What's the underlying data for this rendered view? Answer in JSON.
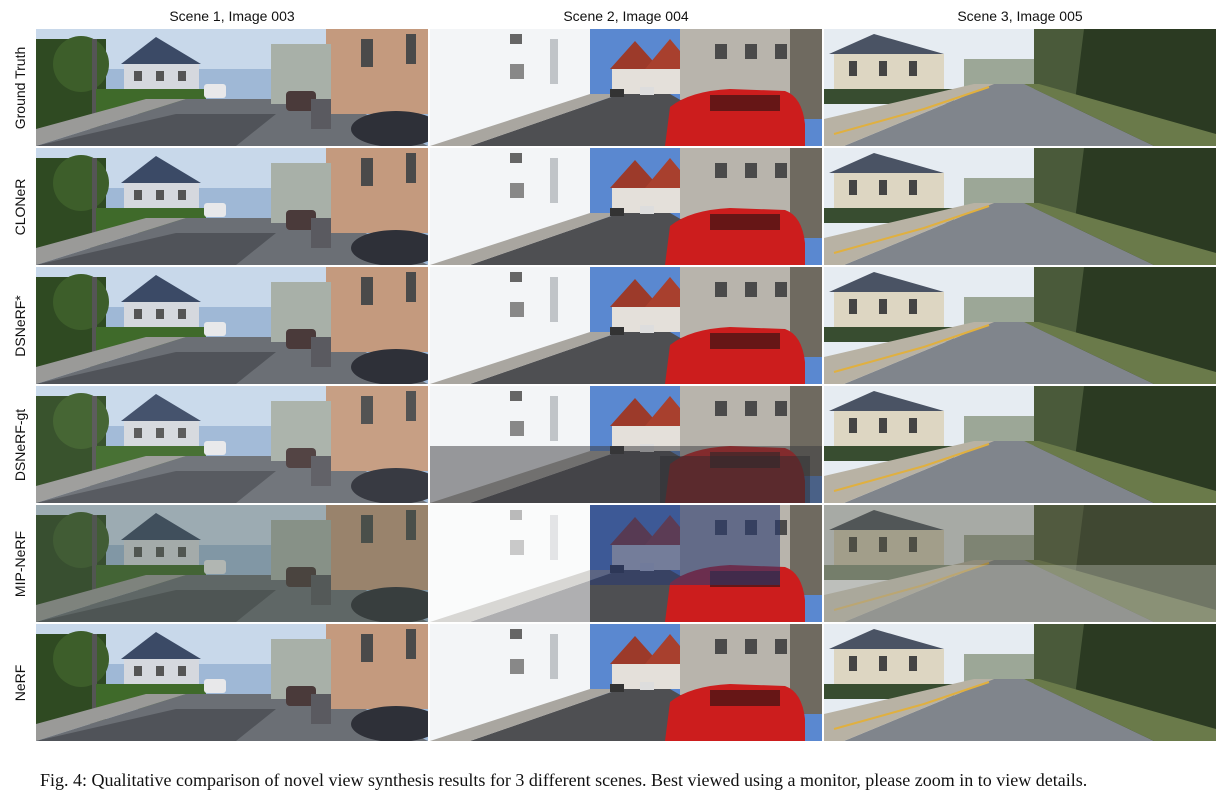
{
  "columns": [
    {
      "label": "Scene 1, Image 003"
    },
    {
      "label": "Scene 2, Image 004"
    },
    {
      "label": "Scene 3, Image 005"
    }
  ],
  "rows": [
    {
      "label": "Ground Truth"
    },
    {
      "label": "CLONeR"
    },
    {
      "label": "DSNeRF*"
    },
    {
      "label": "DSNeRF-gt"
    },
    {
      "label": "MIP-NeRF"
    },
    {
      "label": "NeRF"
    }
  ],
  "caption": "Fig. 4: Qualitative comparison of novel view synthesis results for 3 different scenes. Best viewed using a monitor, please zoom in to view details."
}
